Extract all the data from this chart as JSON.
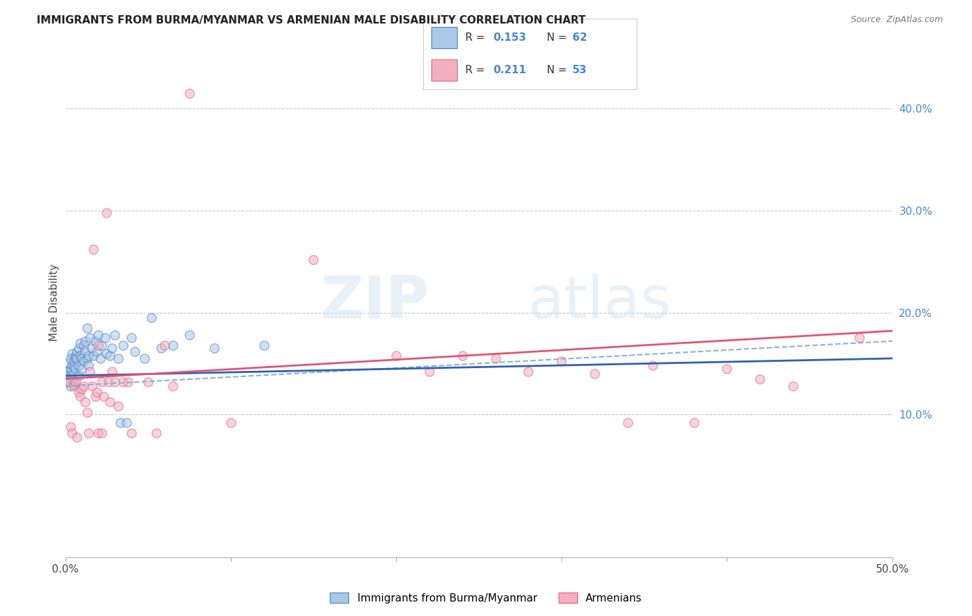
{
  "title": "IMMIGRANTS FROM BURMA/MYANMAR VS ARMENIAN MALE DISABILITY CORRELATION CHART",
  "source": "Source: ZipAtlas.com",
  "ylabel": "Male Disability",
  "xlim": [
    0.0,
    0.5
  ],
  "ylim": [
    -0.04,
    0.46
  ],
  "xticks": [
    0.0,
    0.1,
    0.2,
    0.3,
    0.4,
    0.5
  ],
  "xticklabels": [
    "0.0%",
    "",
    "20.0%",
    "",
    "40.0%",
    "50.0%"
  ],
  "yticks_right": [
    0.1,
    0.2,
    0.3,
    0.4
  ],
  "yticklabels_right": [
    "10.0%",
    "20.0%",
    "30.0%",
    "40.0%"
  ],
  "grid_color": "#c8c8c8",
  "background_color": "#ffffff",
  "watermark_zip": "ZIP",
  "watermark_atlas": "atlas",
  "legend_r1": "R = 0.153",
  "legend_n1": "N = 62",
  "legend_r2": "R = 0.211",
  "legend_n2": "N = 53",
  "blue_fill": "#a8c8e8",
  "pink_fill": "#f4b0c0",
  "blue_edge": "#5080c0",
  "pink_edge": "#e06080",
  "blue_line": "#3060b0",
  "pink_line": "#e05575",
  "blue_dash": "#88b0d8",
  "scatter_size": 90,
  "scatter_alpha": 0.55,
  "blue_scatter": [
    [
      0.001,
      0.138
    ],
    [
      0.001,
      0.142
    ],
    [
      0.002,
      0.15
    ],
    [
      0.002,
      0.132
    ],
    [
      0.003,
      0.145
    ],
    [
      0.003,
      0.138
    ],
    [
      0.003,
      0.155
    ],
    [
      0.003,
      0.128
    ],
    [
      0.004,
      0.148
    ],
    [
      0.004,
      0.143
    ],
    [
      0.004,
      0.16
    ],
    [
      0.004,
      0.135
    ],
    [
      0.005,
      0.152
    ],
    [
      0.005,
      0.147
    ],
    [
      0.005,
      0.14
    ],
    [
      0.005,
      0.13
    ],
    [
      0.006,
      0.158
    ],
    [
      0.006,
      0.155
    ],
    [
      0.006,
      0.145
    ],
    [
      0.007,
      0.162
    ],
    [
      0.007,
      0.155
    ],
    [
      0.008,
      0.165
    ],
    [
      0.008,
      0.148
    ],
    [
      0.008,
      0.138
    ],
    [
      0.009,
      0.17
    ],
    [
      0.009,
      0.158
    ],
    [
      0.01,
      0.145
    ],
    [
      0.01,
      0.155
    ],
    [
      0.011,
      0.168
    ],
    [
      0.011,
      0.152
    ],
    [
      0.012,
      0.162
    ],
    [
      0.012,
      0.172
    ],
    [
      0.013,
      0.185
    ],
    [
      0.013,
      0.155
    ],
    [
      0.014,
      0.158
    ],
    [
      0.014,
      0.148
    ],
    [
      0.015,
      0.175
    ],
    [
      0.016,
      0.165
    ],
    [
      0.017,
      0.158
    ],
    [
      0.018,
      0.172
    ],
    [
      0.019,
      0.162
    ],
    [
      0.02,
      0.178
    ],
    [
      0.021,
      0.155
    ],
    [
      0.022,
      0.168
    ],
    [
      0.024,
      0.175
    ],
    [
      0.025,
      0.16
    ],
    [
      0.027,
      0.158
    ],
    [
      0.028,
      0.165
    ],
    [
      0.03,
      0.178
    ],
    [
      0.032,
      0.155
    ],
    [
      0.033,
      0.092
    ],
    [
      0.035,
      0.168
    ],
    [
      0.037,
      0.092
    ],
    [
      0.04,
      0.175
    ],
    [
      0.042,
      0.162
    ],
    [
      0.048,
      0.155
    ],
    [
      0.052,
      0.195
    ],
    [
      0.058,
      0.165
    ],
    [
      0.065,
      0.168
    ],
    [
      0.075,
      0.178
    ],
    [
      0.09,
      0.165
    ],
    [
      0.12,
      0.168
    ]
  ],
  "pink_scatter": [
    [
      0.002,
      0.132
    ],
    [
      0.003,
      0.088
    ],
    [
      0.004,
      0.082
    ],
    [
      0.005,
      0.128
    ],
    [
      0.006,
      0.132
    ],
    [
      0.007,
      0.078
    ],
    [
      0.008,
      0.122
    ],
    [
      0.009,
      0.118
    ],
    [
      0.01,
      0.125
    ],
    [
      0.011,
      0.128
    ],
    [
      0.012,
      0.112
    ],
    [
      0.013,
      0.102
    ],
    [
      0.014,
      0.082
    ],
    [
      0.015,
      0.142
    ],
    [
      0.016,
      0.128
    ],
    [
      0.017,
      0.262
    ],
    [
      0.018,
      0.118
    ],
    [
      0.019,
      0.122
    ],
    [
      0.02,
      0.082
    ],
    [
      0.02,
      0.168
    ],
    [
      0.022,
      0.132
    ],
    [
      0.022,
      0.082
    ],
    [
      0.023,
      0.118
    ],
    [
      0.025,
      0.298
    ],
    [
      0.026,
      0.132
    ],
    [
      0.027,
      0.112
    ],
    [
      0.028,
      0.142
    ],
    [
      0.03,
      0.132
    ],
    [
      0.032,
      0.108
    ],
    [
      0.035,
      0.132
    ],
    [
      0.038,
      0.132
    ],
    [
      0.04,
      0.082
    ],
    [
      0.05,
      0.132
    ],
    [
      0.055,
      0.082
    ],
    [
      0.06,
      0.168
    ],
    [
      0.065,
      0.128
    ],
    [
      0.075,
      0.415
    ],
    [
      0.1,
      0.092
    ],
    [
      0.15,
      0.252
    ],
    [
      0.2,
      0.158
    ],
    [
      0.22,
      0.142
    ],
    [
      0.24,
      0.158
    ],
    [
      0.26,
      0.155
    ],
    [
      0.28,
      0.142
    ],
    [
      0.3,
      0.152
    ],
    [
      0.32,
      0.14
    ],
    [
      0.34,
      0.092
    ],
    [
      0.355,
      0.148
    ],
    [
      0.38,
      0.092
    ],
    [
      0.4,
      0.145
    ],
    [
      0.42,
      0.135
    ],
    [
      0.44,
      0.128
    ],
    [
      0.48,
      0.175
    ]
  ]
}
